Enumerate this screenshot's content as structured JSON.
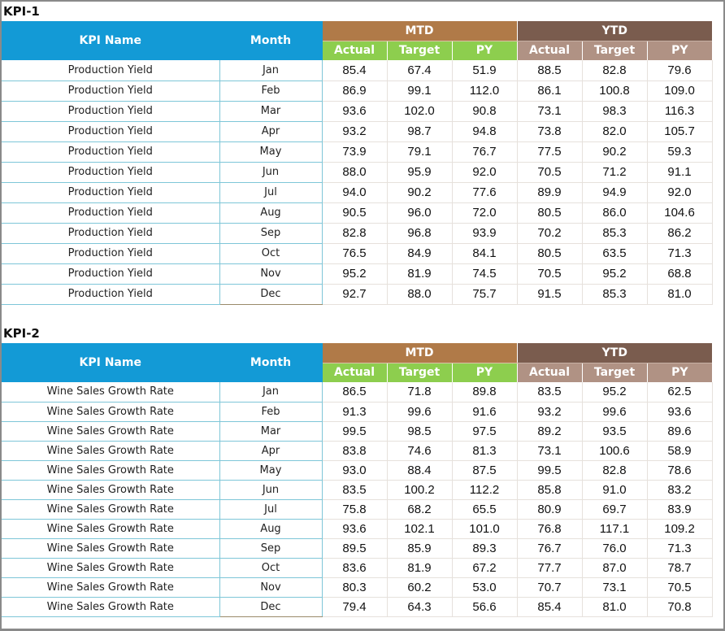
{
  "columns": {
    "kpi_name": "KPI Name",
    "month": "Month",
    "mtd": "MTD",
    "ytd": "YTD",
    "actual": "Actual",
    "target": "Target",
    "py": "PY"
  },
  "colors": {
    "header_blue": "#139ad6",
    "mtd_brown": "#b07a48",
    "ytd_brown": "#7a5c4e",
    "mtd_sub_green": "#8dce4e",
    "ytd_sub_taupe": "#b09284"
  },
  "kpi1": {
    "title": "KPI-1",
    "rows": [
      {
        "name": "Production Yield",
        "month": "Jan",
        "mtd_actual": "85.4",
        "mtd_target": "67.4",
        "mtd_py": "51.9",
        "ytd_actual": "88.5",
        "ytd_target": "82.8",
        "ytd_py": "79.6"
      },
      {
        "name": "Production Yield",
        "month": "Feb",
        "mtd_actual": "86.9",
        "mtd_target": "99.1",
        "mtd_py": "112.0",
        "ytd_actual": "86.1",
        "ytd_target": "100.8",
        "ytd_py": "109.0"
      },
      {
        "name": "Production Yield",
        "month": "Mar",
        "mtd_actual": "93.6",
        "mtd_target": "102.0",
        "mtd_py": "90.8",
        "ytd_actual": "73.1",
        "ytd_target": "98.3",
        "ytd_py": "116.3"
      },
      {
        "name": "Production Yield",
        "month": "Apr",
        "mtd_actual": "93.2",
        "mtd_target": "98.7",
        "mtd_py": "94.8",
        "ytd_actual": "73.8",
        "ytd_target": "82.0",
        "ytd_py": "105.7"
      },
      {
        "name": "Production Yield",
        "month": "May",
        "mtd_actual": "73.9",
        "mtd_target": "79.1",
        "mtd_py": "76.7",
        "ytd_actual": "77.5",
        "ytd_target": "90.2",
        "ytd_py": "59.3"
      },
      {
        "name": "Production Yield",
        "month": "Jun",
        "mtd_actual": "88.0",
        "mtd_target": "95.9",
        "mtd_py": "92.0",
        "ytd_actual": "70.5",
        "ytd_target": "71.2",
        "ytd_py": "91.1"
      },
      {
        "name": "Production Yield",
        "month": "Jul",
        "mtd_actual": "94.0",
        "mtd_target": "90.2",
        "mtd_py": "77.6",
        "ytd_actual": "89.9",
        "ytd_target": "94.9",
        "ytd_py": "92.0"
      },
      {
        "name": "Production Yield",
        "month": "Aug",
        "mtd_actual": "90.5",
        "mtd_target": "96.0",
        "mtd_py": "72.0",
        "ytd_actual": "80.5",
        "ytd_target": "86.0",
        "ytd_py": "104.6"
      },
      {
        "name": "Production Yield",
        "month": "Sep",
        "mtd_actual": "82.8",
        "mtd_target": "96.8",
        "mtd_py": "93.9",
        "ytd_actual": "70.2",
        "ytd_target": "85.3",
        "ytd_py": "86.2"
      },
      {
        "name": "Production Yield",
        "month": "Oct",
        "mtd_actual": "76.5",
        "mtd_target": "84.9",
        "mtd_py": "84.1",
        "ytd_actual": "80.5",
        "ytd_target": "63.5",
        "ytd_py": "71.3"
      },
      {
        "name": "Production Yield",
        "month": "Nov",
        "mtd_actual": "95.2",
        "mtd_target": "81.9",
        "mtd_py": "74.5",
        "ytd_actual": "70.5",
        "ytd_target": "95.2",
        "ytd_py": "68.8"
      },
      {
        "name": "Production Yield",
        "month": "Dec",
        "mtd_actual": "92.7",
        "mtd_target": "88.0",
        "mtd_py": "75.7",
        "ytd_actual": "91.5",
        "ytd_target": "85.3",
        "ytd_py": "81.0"
      }
    ]
  },
  "kpi2": {
    "title": "KPI-2",
    "rows": [
      {
        "name": "Wine Sales Growth Rate",
        "month": "Jan",
        "mtd_actual": "86.5",
        "mtd_target": "71.8",
        "mtd_py": "89.8",
        "ytd_actual": "83.5",
        "ytd_target": "95.2",
        "ytd_py": "62.5"
      },
      {
        "name": "Wine Sales Growth Rate",
        "month": "Feb",
        "mtd_actual": "91.3",
        "mtd_target": "99.6",
        "mtd_py": "91.6",
        "ytd_actual": "93.2",
        "ytd_target": "99.6",
        "ytd_py": "93.6"
      },
      {
        "name": "Wine Sales Growth Rate",
        "month": "Mar",
        "mtd_actual": "99.5",
        "mtd_target": "98.5",
        "mtd_py": "97.5",
        "ytd_actual": "89.2",
        "ytd_target": "93.5",
        "ytd_py": "89.6"
      },
      {
        "name": "Wine Sales Growth Rate",
        "month": "Apr",
        "mtd_actual": "83.8",
        "mtd_target": "74.6",
        "mtd_py": "81.3",
        "ytd_actual": "73.1",
        "ytd_target": "100.6",
        "ytd_py": "58.9"
      },
      {
        "name": "Wine Sales Growth Rate",
        "month": "May",
        "mtd_actual": "93.0",
        "mtd_target": "88.4",
        "mtd_py": "87.5",
        "ytd_actual": "99.5",
        "ytd_target": "82.8",
        "ytd_py": "78.6"
      },
      {
        "name": "Wine Sales Growth Rate",
        "month": "Jun",
        "mtd_actual": "83.5",
        "mtd_target": "100.2",
        "mtd_py": "112.2",
        "ytd_actual": "85.8",
        "ytd_target": "91.0",
        "ytd_py": "83.2"
      },
      {
        "name": "Wine Sales Growth Rate",
        "month": "Jul",
        "mtd_actual": "75.8",
        "mtd_target": "68.2",
        "mtd_py": "65.5",
        "ytd_actual": "80.9",
        "ytd_target": "69.7",
        "ytd_py": "83.9"
      },
      {
        "name": "Wine Sales Growth Rate",
        "month": "Aug",
        "mtd_actual": "93.6",
        "mtd_target": "102.1",
        "mtd_py": "101.0",
        "ytd_actual": "76.8",
        "ytd_target": "117.1",
        "ytd_py": "109.2"
      },
      {
        "name": "Wine Sales Growth Rate",
        "month": "Sep",
        "mtd_actual": "89.5",
        "mtd_target": "85.9",
        "mtd_py": "89.3",
        "ytd_actual": "76.7",
        "ytd_target": "76.0",
        "ytd_py": "71.3"
      },
      {
        "name": "Wine Sales Growth Rate",
        "month": "Oct",
        "mtd_actual": "83.6",
        "mtd_target": "81.9",
        "mtd_py": "67.2",
        "ytd_actual": "77.7",
        "ytd_target": "87.0",
        "ytd_py": "78.7"
      },
      {
        "name": "Wine Sales Growth Rate",
        "month": "Nov",
        "mtd_actual": "80.3",
        "mtd_target": "60.2",
        "mtd_py": "53.0",
        "ytd_actual": "70.7",
        "ytd_target": "73.1",
        "ytd_py": "70.5"
      },
      {
        "name": "Wine Sales Growth Rate",
        "month": "Dec",
        "mtd_actual": "79.4",
        "mtd_target": "64.3",
        "mtd_py": "56.6",
        "ytd_actual": "85.4",
        "ytd_target": "81.0",
        "ytd_py": "70.8"
      }
    ]
  }
}
